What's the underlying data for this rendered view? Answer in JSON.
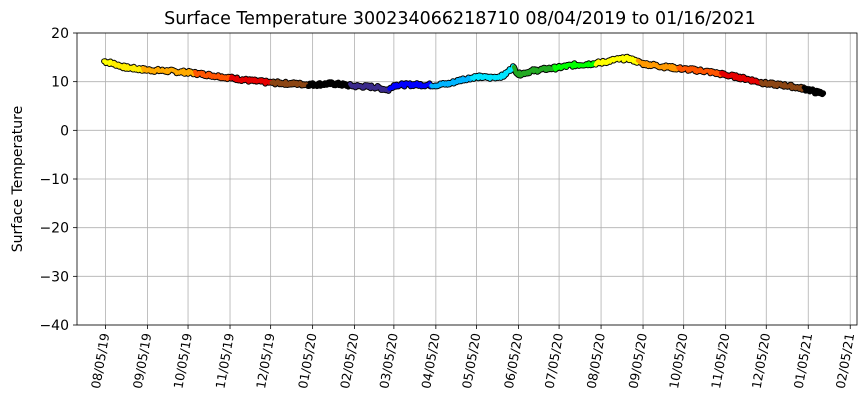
{
  "chart_data": {
    "type": "line",
    "title": "Surface Temperature 300234066218710  08/04/2019 to 01/16/2021",
    "xlabel": "",
    "ylabel": "Surface Temperature",
    "ylim": [
      -40,
      20
    ],
    "xlim": [
      "2019-07-15",
      "2021-02-10"
    ],
    "grid": true,
    "y_ticks": [
      -40,
      -30,
      -20,
      -10,
      0,
      10,
      20
    ],
    "x_ticks": [
      "2019-08-05",
      "2019-09-05",
      "2019-10-05",
      "2019-11-05",
      "2019-12-05",
      "2020-01-05",
      "2020-02-05",
      "2020-03-05",
      "2020-04-05",
      "2020-05-05",
      "2020-06-05",
      "2020-07-05",
      "2020-08-05",
      "2020-09-05",
      "2020-10-05",
      "2020-11-05",
      "2020-12-05",
      "2021-01-05",
      "2021-02-05"
    ],
    "x_tick_labels": [
      "08/05/19",
      "09/05/19",
      "10/05/19",
      "11/05/19",
      "12/05/19",
      "01/05/20",
      "02/05/20",
      "03/05/20",
      "04/05/20",
      "05/05/20",
      "06/05/20",
      "07/05/20",
      "08/05/20",
      "09/05/20",
      "10/05/20",
      "11/05/20",
      "12/05/20",
      "01/05/21",
      "02/05/21"
    ],
    "color_segments": [
      {
        "until": "2019-08-10",
        "color": "#ffff00"
      },
      {
        "until": "2019-09-01",
        "color": "#ffee00"
      },
      {
        "until": "2019-10-10",
        "color": "#ffaa00"
      },
      {
        "until": "2019-11-05",
        "color": "#ff5500"
      },
      {
        "until": "2019-12-05",
        "color": "#e60000"
      },
      {
        "until": "2020-01-01",
        "color": "#8b4513"
      },
      {
        "until": "2020-02-01",
        "color": "#000000"
      },
      {
        "until": "2020-03-01",
        "color": "#3a2a8a"
      },
      {
        "until": "2020-04-01",
        "color": "#0000ff"
      },
      {
        "until": "2020-05-01",
        "color": "#00b4ff"
      },
      {
        "until": "2020-06-01",
        "color": "#00e5ff"
      },
      {
        "until": "2020-07-01",
        "color": "#22aa22"
      },
      {
        "until": "2020-08-01",
        "color": "#00ff00"
      },
      {
        "until": "2020-09-01",
        "color": "#ffff00"
      },
      {
        "until": "2020-10-01",
        "color": "#ff9900"
      },
      {
        "until": "2020-11-01",
        "color": "#ff5500"
      },
      {
        "until": "2020-12-01",
        "color": "#e60000"
      },
      {
        "until": "2021-01-01",
        "color": "#8b4513"
      },
      {
        "until": "2021-01-17",
        "color": "#000000"
      }
    ],
    "series": [
      {
        "x": [
          "2019-08-04",
          "2019-08-10",
          "2019-08-20",
          "2019-09-05",
          "2019-09-20",
          "2019-10-05",
          "2019-10-20",
          "2019-11-05",
          "2019-11-20",
          "2019-12-05",
          "2019-12-20",
          "2020-01-05",
          "2020-01-20",
          "2020-02-05",
          "2020-02-20",
          "2020-03-01",
          "2020-03-05",
          "2020-03-20",
          "2020-04-05",
          "2020-04-15",
          "2020-04-25",
          "2020-05-05",
          "2020-05-15",
          "2020-05-25",
          "2020-06-01",
          "2020-06-05",
          "2020-06-15",
          "2020-06-25",
          "2020-07-05",
          "2020-07-15",
          "2020-07-25",
          "2020-08-05",
          "2020-08-15",
          "2020-08-25",
          "2020-09-05",
          "2020-09-20",
          "2020-10-05",
          "2020-10-20",
          "2020-11-05",
          "2020-11-20",
          "2020-12-05",
          "2020-12-20",
          "2021-01-05",
          "2021-01-10",
          "2021-01-16"
        ],
        "y": [
          14.2,
          13.8,
          12.9,
          12.4,
          12.2,
          11.9,
          11.4,
          10.8,
          10.2,
          9.8,
          9.6,
          9.4,
          9.6,
          9.1,
          8.9,
          8.3,
          9.3,
          9.4,
          9.3,
          9.6,
          10.5,
          11.0,
          10.8,
          11.2,
          13.0,
          11.5,
          12.2,
          12.6,
          12.9,
          13.4,
          13.6,
          13.9,
          14.5,
          14.8,
          13.7,
          13.1,
          12.6,
          12.2,
          11.4,
          10.6,
          9.6,
          9.2,
          8.4,
          7.9,
          7.6
        ]
      }
    ]
  }
}
